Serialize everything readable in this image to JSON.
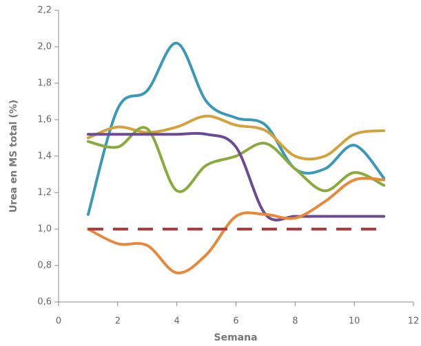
{
  "chart_data": {
    "type": "line",
    "x_label": "Semana",
    "y_label": "Urea en MS total (%)",
    "x": [
      1,
      2,
      3,
      4,
      5,
      6,
      7,
      8,
      9,
      10,
      11
    ],
    "series": [
      {
        "color": "#3a9ab5",
        "values": [
          1.08,
          1.66,
          1.76,
          2.02,
          1.7,
          1.61,
          1.57,
          1.33,
          1.33,
          1.46,
          1.28
        ]
      },
      {
        "color": "#d4a23a",
        "values": [
          1.5,
          1.56,
          1.53,
          1.56,
          1.62,
          1.57,
          1.54,
          1.4,
          1.4,
          1.52,
          1.54
        ]
      },
      {
        "color": "#8aaa3c",
        "values": [
          1.48,
          1.45,
          1.55,
          1.21,
          1.35,
          1.4,
          1.47,
          1.33,
          1.21,
          1.31,
          1.24
        ]
      },
      {
        "color": "#6a4c93",
        "values": [
          1.52,
          1.52,
          1.52,
          1.52,
          1.52,
          1.45,
          1.08,
          1.07,
          1.07,
          1.07,
          1.07
        ]
      },
      {
        "color": "#e8883a",
        "values": [
          1.0,
          0.92,
          0.91,
          0.76,
          0.86,
          1.07,
          1.08,
          1.06,
          1.15,
          1.27,
          1.27
        ]
      },
      {
        "color": "#b5393a",
        "dashed": true,
        "values": [
          1.0,
          1.0,
          1.0,
          1.0,
          1.0,
          1.0,
          1.0,
          1.0,
          1.0,
          1.0,
          1.0
        ]
      }
    ],
    "xlim": [
      0,
      12
    ],
    "xticks": [
      0,
      2,
      4,
      6,
      8,
      10,
      12
    ],
    "ylim": [
      0.6,
      2.2
    ],
    "yticks": [
      {
        "value": 0.6,
        "label": "0,6"
      },
      {
        "value": 0.8,
        "label": "0,8"
      },
      {
        "value": 1.0,
        "label": "1,0"
      },
      {
        "value": 1.2,
        "label": "1,2"
      },
      {
        "value": 1.4,
        "label": "1,4"
      },
      {
        "value": 1.6,
        "label": "1,6"
      },
      {
        "value": 1.8,
        "label": "1,8"
      },
      {
        "value": 2.0,
        "label": "2,0"
      },
      {
        "value": 2.2,
        "label": "2,2"
      }
    ]
  }
}
